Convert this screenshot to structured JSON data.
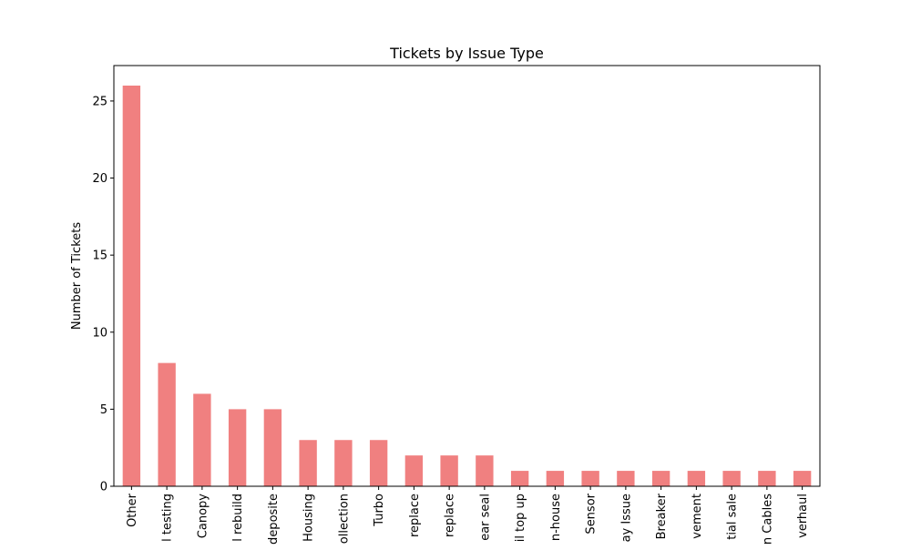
{
  "chart_data": {
    "type": "bar",
    "title": "Tickets by Issue Type",
    "xlabel": "",
    "ylabel": "Number of Tickets",
    "categories": [
      "Other",
      "l testing",
      "Canopy",
      "l rebuild",
      "deposite",
      "Housing",
      "ollection",
      "Turbo",
      "replace",
      "replace",
      "ear seal",
      "il top up",
      "n-house",
      "Sensor",
      "ay Issue",
      "Breaker",
      "vement",
      "tial sale",
      "n Cables",
      "verhaul"
    ],
    "values": [
      26,
      8,
      6,
      5,
      5,
      3,
      3,
      3,
      2,
      2,
      2,
      1,
      1,
      1,
      1,
      1,
      1,
      1,
      1,
      1
    ],
    "ylim": [
      0,
      27.3
    ],
    "yticks": [
      0,
      5,
      10,
      15,
      20,
      25
    ],
    "grid": false,
    "legend": false,
    "colors": {
      "bar": "#f08080",
      "axis": "#000000",
      "background": "#ffffff"
    }
  }
}
